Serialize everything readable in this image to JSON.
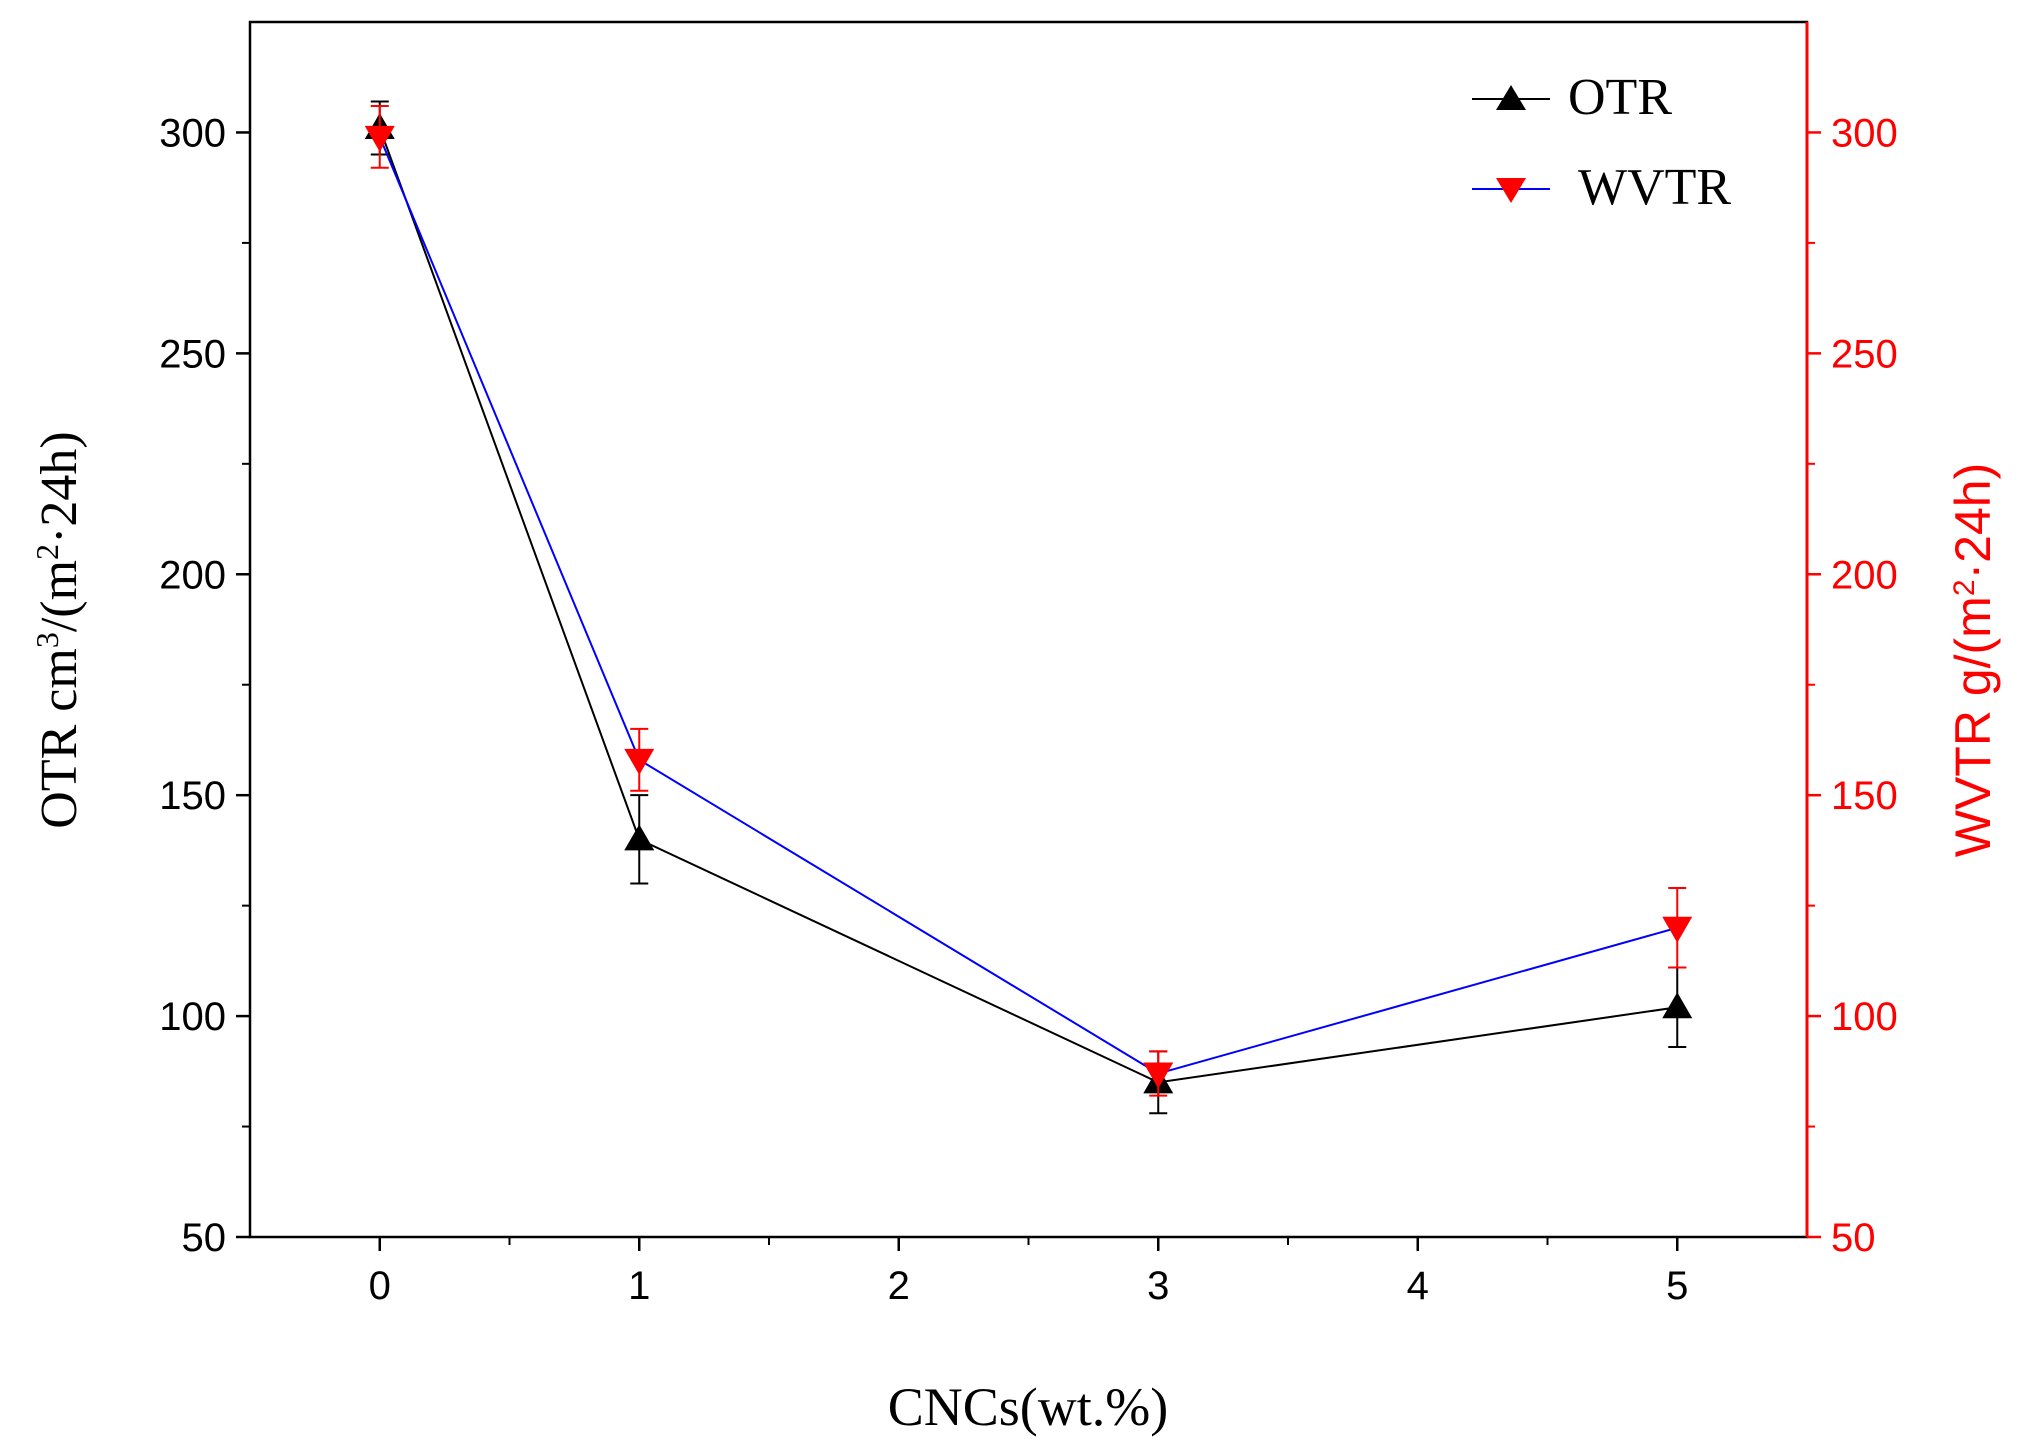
{
  "chart_data": {
    "type": "line",
    "x": [
      0,
      1,
      3,
      5
    ],
    "xlim": [
      -0.5,
      5.5
    ],
    "x_ticks": [
      "0",
      "1",
      "2",
      "3",
      "4",
      "5"
    ],
    "xlabel": "CNCs(wt.%)",
    "y_left": {
      "label_prefix": "OTR cm",
      "label_sup1": "3",
      "label_mid": "/(m",
      "label_sup2": "2",
      "label_suffix": "·24h)",
      "ylim": [
        50,
        325
      ],
      "ticks": [
        "50",
        "100",
        "150",
        "200",
        "250",
        "300"
      ],
      "color": "#000000"
    },
    "y_right": {
      "label_prefix": "WVTR g/(m",
      "label_sup": "2",
      "label_suffix": "·24h)",
      "ylim": [
        50,
        325
      ],
      "ticks": [
        "50",
        "100",
        "150",
        "200",
        "250",
        "300"
      ],
      "color": "#ff0000"
    },
    "series": [
      {
        "name": "OTR",
        "axis": "left",
        "values": [
          301,
          140,
          85,
          102
        ],
        "errors": [
          6,
          10,
          7,
          9
        ],
        "marker": "triangle-up",
        "line_color": "#000000",
        "marker_color": "#000000"
      },
      {
        "name": "WVTR",
        "axis": "right",
        "values": [
          299,
          158,
          87,
          120
        ],
        "errors": [
          7,
          7,
          5,
          9
        ],
        "marker": "triangle-down",
        "line_color": "#0000ff",
        "marker_color": "#ff0000"
      }
    ],
    "legend_position": "top-right"
  }
}
